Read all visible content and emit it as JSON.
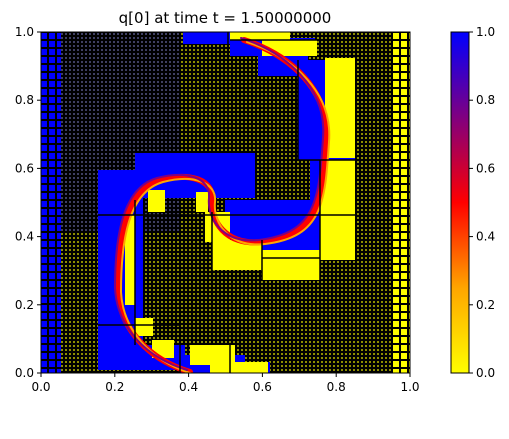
{
  "chart_data": {
    "type": "heatmap",
    "title": "q[0] at time t =     1.50000000",
    "xlabel": "",
    "ylabel": "",
    "xlim": [
      0.0,
      1.0
    ],
    "ylim": [
      0.0,
      1.0
    ],
    "x_ticks": [
      "0.0",
      "0.2",
      "0.4",
      "0.6",
      "0.8",
      "1.0"
    ],
    "y_ticks": [
      "0.0",
      "0.2",
      "0.4",
      "0.6",
      "0.8",
      "1.0"
    ],
    "colorbar": {
      "range": [
        0.0,
        1.0
      ],
      "ticks": [
        "0.0",
        "0.2",
        "0.4",
        "0.6",
        "0.8",
        "1.0"
      ],
      "colormap": [
        "#ffff00",
        "#ffa500",
        "#ff0000",
        "#800080",
        "#0000ff"
      ]
    },
    "field": {
      "description": "Advected scalar q[0] on adaptively refined grid; swirl of q=1 interface with q=0 region on the right",
      "left_boundary_value": 1.0,
      "right_boundary_value": 0.0
    },
    "regions": [
      {
        "name": "blue-high",
        "value": 1.0
      },
      {
        "name": "yellow-low",
        "value": 0.0
      }
    ],
    "colors": {
      "high": "#0000ff",
      "low": "#ffff00",
      "grid_line": "#000000"
    }
  }
}
